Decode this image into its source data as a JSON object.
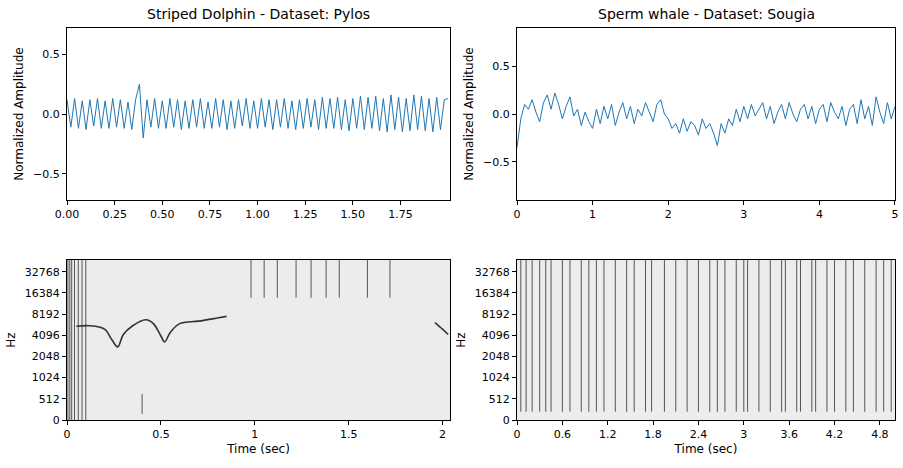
{
  "chart_data": [
    {
      "type": "line",
      "title": "Striped Dolphin - Dataset: Pylos",
      "y_label": "Normalized Amplitude",
      "color": "#1f77b4",
      "grid": false,
      "x": [
        0,
        0.02,
        0.04,
        0.06,
        0.08,
        0.1,
        0.12,
        0.14,
        0.16,
        0.18,
        0.2,
        0.22,
        0.24,
        0.26,
        0.28,
        0.3,
        0.32,
        0.34,
        0.36,
        0.38,
        0.4,
        0.42,
        0.44,
        0.46,
        0.48,
        0.5,
        0.52,
        0.54,
        0.56,
        0.58,
        0.6,
        0.62,
        0.64,
        0.66,
        0.68,
        0.7,
        0.72,
        0.74,
        0.76,
        0.78,
        0.8,
        0.82,
        0.84,
        0.86,
        0.88,
        0.9,
        0.92,
        0.94,
        0.96,
        0.98,
        1.0,
        1.02,
        1.04,
        1.06,
        1.08,
        1.1,
        1.12,
        1.14,
        1.16,
        1.18,
        1.2,
        1.22,
        1.24,
        1.26,
        1.28,
        1.3,
        1.32,
        1.34,
        1.36,
        1.38,
        1.4,
        1.42,
        1.44,
        1.46,
        1.48,
        1.5,
        1.52,
        1.54,
        1.56,
        1.58,
        1.6,
        1.62,
        1.64,
        1.66,
        1.68,
        1.7,
        1.72,
        1.74,
        1.76,
        1.78,
        1.8,
        1.82,
        1.84,
        1.86,
        1.88,
        1.9,
        1.92,
        1.94,
        1.96,
        1.98,
        2.0
      ],
      "values": [
        0.12,
        -0.11,
        0.13,
        -0.12,
        0.11,
        -0.13,
        0.12,
        -0.1,
        0.13,
        -0.12,
        0.11,
        -0.12,
        0.13,
        -0.11,
        0.12,
        -0.12,
        0.1,
        -0.13,
        0.12,
        0.25,
        -0.2,
        0.12,
        -0.11,
        0.13,
        -0.12,
        0.11,
        -0.12,
        0.13,
        -0.11,
        0.12,
        -0.13,
        0.11,
        -0.12,
        0.12,
        -0.11,
        0.13,
        -0.12,
        0.1,
        -0.12,
        0.13,
        -0.11,
        0.12,
        -0.13,
        0.11,
        -0.12,
        0.12,
        -0.1,
        0.13,
        -0.12,
        0.11,
        -0.12,
        0.13,
        -0.11,
        0.12,
        -0.13,
        0.12,
        -0.11,
        0.13,
        -0.12,
        0.11,
        -0.13,
        0.12,
        -0.12,
        0.13,
        -0.11,
        0.12,
        -0.13,
        0.14,
        -0.12,
        0.13,
        -0.12,
        0.14,
        -0.13,
        0.12,
        -0.14,
        0.13,
        -0.12,
        0.15,
        -0.13,
        0.14,
        -0.12,
        0.15,
        -0.14,
        0.13,
        -0.15,
        0.16,
        -0.13,
        0.14,
        -0.15,
        0.13,
        -0.14,
        0.16,
        -0.13,
        0.15,
        -0.14,
        0.13,
        -0.15,
        0.14,
        -0.13,
        0.12,
        0.13
      ],
      "xlim": [
        0,
        2.01
      ],
      "xticks": [
        {
          "value": 0,
          "label": "0.00"
        },
        {
          "value": 0.25,
          "label": "0.25"
        },
        {
          "value": 0.5,
          "label": "0.50"
        },
        {
          "value": 0.75,
          "label": "0.75"
        },
        {
          "value": 1,
          "label": "1.00"
        },
        {
          "value": 1.25,
          "label": "1.25"
        },
        {
          "value": 1.5,
          "label": "1.50"
        },
        {
          "value": 1.75,
          "label": "1.75"
        }
      ],
      "ylim": [
        -0.72,
        0.72
      ],
      "yticks": [
        {
          "value": -0.5,
          "label": "−0.5"
        },
        {
          "value": 0,
          "label": "0.0"
        },
        {
          "value": 0.5,
          "label": "0.5"
        }
      ]
    },
    {
      "type": "line",
      "title": "Sperm whale - Dataset: Sougia",
      "y_label": "Normalized Amplitude",
      "color": "#1f77b4",
      "grid": false,
      "x": [
        0,
        0.05,
        0.1,
        0.15,
        0.2,
        0.25,
        0.3,
        0.35,
        0.4,
        0.45,
        0.5,
        0.55,
        0.6,
        0.65,
        0.7,
        0.75,
        0.8,
        0.85,
        0.9,
        0.95,
        1.0,
        1.05,
        1.1,
        1.15,
        1.2,
        1.25,
        1.3,
        1.35,
        1.4,
        1.45,
        1.5,
        1.55,
        1.6,
        1.65,
        1.7,
        1.75,
        1.8,
        1.85,
        1.9,
        1.95,
        2.0,
        2.05,
        2.1,
        2.15,
        2.2,
        2.25,
        2.3,
        2.35,
        2.4,
        2.45,
        2.5,
        2.55,
        2.6,
        2.65,
        2.7,
        2.75,
        2.8,
        2.85,
        2.9,
        2.95,
        3.0,
        3.05,
        3.1,
        3.15,
        3.2,
        3.25,
        3.3,
        3.35,
        3.4,
        3.45,
        3.5,
        3.55,
        3.6,
        3.65,
        3.7,
        3.75,
        3.8,
        3.85,
        3.9,
        3.95,
        4.0,
        4.05,
        4.1,
        4.15,
        4.2,
        4.25,
        4.3,
        4.35,
        4.4,
        4.45,
        4.5,
        4.55,
        4.6,
        4.65,
        4.7,
        4.75,
        4.8,
        4.85,
        4.9,
        4.95,
        5.0
      ],
      "values": [
        -0.35,
        -0.05,
        0.1,
        0.05,
        0.15,
        0.02,
        -0.08,
        0.12,
        0.2,
        0.05,
        0.22,
        0.1,
        -0.05,
        0.08,
        0.18,
        -0.02,
        0.05,
        -0.12,
        0.02,
        -0.08,
        -0.15,
        0.05,
        -0.1,
        0.08,
        -0.05,
        0.1,
        -0.12,
        0.02,
        0.12,
        -0.05,
        0.08,
        -0.1,
        0.05,
        -0.02,
        0.12,
        0.02,
        -0.08,
        0.1,
        0.15,
        0.0,
        -0.05,
        -0.15,
        -0.1,
        -0.2,
        -0.05,
        -0.18,
        -0.08,
        -0.12,
        -0.22,
        -0.05,
        -0.15,
        -0.1,
        -0.2,
        -0.33,
        -0.1,
        -0.2,
        -0.05,
        -0.12,
        0.05,
        -0.08,
        0.08,
        -0.05,
        0.1,
        -0.02,
        0.05,
        0.12,
        -0.05,
        0.08,
        -0.1,
        0.02,
        0.1,
        -0.05,
        0.12,
        0.0,
        -0.08,
        0.05,
        0.1,
        -0.05,
        0.08,
        -0.1,
        0.05,
        0.1,
        -0.08,
        0.12,
        0.02,
        -0.05,
        0.08,
        -0.12,
        0.05,
        0.1,
        -0.1,
        0.15,
        -0.05,
        0.08,
        -0.12,
        0.18,
        0.02,
        -0.1,
        0.12,
        -0.05,
        0.08
      ],
      "xlim": [
        0,
        5
      ],
      "xticks": [
        0,
        1,
        2,
        3,
        4,
        5
      ],
      "ylim": [
        -0.9,
        0.9
      ],
      "yticks": [
        {
          "value": -0.5,
          "label": "−0.5"
        },
        {
          "value": 0,
          "label": "0.0"
        },
        {
          "value": 0.5,
          "label": "0.5"
        }
      ]
    },
    {
      "type": "spectrogram",
      "x_label": "Time (sec)",
      "y_label": "Hz",
      "log": "y",
      "grid": false,
      "series": [
        {
          "color": "#333333",
          "x": [
            0.05,
            0.12,
            0.2,
            0.24,
            0.27,
            0.3,
            0.35,
            0.42,
            0.46,
            0.5,
            0.52,
            0.55,
            0.6,
            0.7,
            0.8,
            0.85
          ],
          "values": [
            5500,
            5600,
            5000,
            3500,
            2800,
            4200,
            5600,
            6800,
            6000,
            4000,
            3300,
            4500,
            6000,
            6500,
            7200,
            7600
          ]
        },
        {
          "color": "#333333",
          "x": [
            1.96,
            2.0,
            2.03
          ],
          "values": [
            6200,
            5000,
            4200
          ]
        }
      ],
      "clicks": {
        "color": "#555555",
        "x": [
          0.005,
          0.015,
          0.025,
          0.04,
          0.06,
          0.08,
          0.1,
          0.4,
          0.98,
          1.05,
          1.12,
          1.22,
          1.3,
          1.38,
          1.45,
          1.6,
          1.72
        ],
        "low": [
          0,
          0,
          0,
          0,
          0,
          0,
          0,
          150,
          14000,
          14000,
          14000,
          14000,
          14000,
          14000,
          14000,
          14000,
          14000
        ],
        "high": [
          48000,
          48000,
          48000,
          48000,
          48000,
          48000,
          48000,
          600,
          48000,
          48000,
          48000,
          48000,
          48000,
          48000,
          48000,
          48000,
          48000
        ]
      },
      "xlim": [
        0,
        2.04
      ],
      "xticks": [
        0,
        0.5,
        1,
        1.5,
        2
      ],
      "ylim": [
        0,
        48000
      ],
      "yticks": [
        0,
        512,
        1024,
        2048,
        4096,
        8192,
        16384,
        32768
      ]
    },
    {
      "type": "spectrogram",
      "x_label": "Time (sec)",
      "y_label": "Hz",
      "log": "y",
      "grid": false,
      "series": [],
      "clicks": {
        "color": "#555555",
        "x": [
          0.05,
          0.12,
          0.2,
          0.3,
          0.38,
          0.45,
          0.6,
          0.7,
          0.85,
          0.95,
          1.05,
          1.15,
          1.3,
          1.45,
          1.55,
          1.7,
          1.78,
          1.95,
          2.1,
          2.25,
          2.4,
          2.55,
          2.65,
          2.75,
          2.9,
          3.0,
          3.05,
          3.2,
          3.35,
          3.5,
          3.55,
          3.7,
          3.75,
          3.9,
          3.95,
          4.1,
          4.2,
          4.35,
          4.45,
          4.6,
          4.75,
          4.85,
          4.95
        ],
        "low": [
          200,
          200,
          200,
          200,
          200,
          200,
          200,
          200,
          200,
          200,
          200,
          200,
          200,
          200,
          200,
          200,
          200,
          200,
          200,
          200,
          200,
          200,
          200,
          200,
          200,
          200,
          200,
          200,
          200,
          200,
          200,
          200,
          200,
          200,
          200,
          200,
          200,
          200,
          200,
          200,
          200,
          200,
          200
        ],
        "high": [
          48000,
          48000,
          48000,
          48000,
          48000,
          48000,
          48000,
          48000,
          48000,
          48000,
          48000,
          48000,
          48000,
          48000,
          48000,
          48000,
          48000,
          48000,
          48000,
          48000,
          48000,
          48000,
          48000,
          48000,
          48000,
          48000,
          48000,
          48000,
          48000,
          48000,
          48000,
          48000,
          48000,
          48000,
          48000,
          48000,
          48000,
          48000,
          48000,
          48000,
          48000,
          48000,
          48000
        ]
      },
      "xlim": [
        0,
        5
      ],
      "xticks": [
        0,
        0.6,
        1.2,
        1.8,
        2.4,
        3,
        3.6,
        4.2,
        4.8
      ],
      "ylim": [
        0,
        48000
      ],
      "yticks": [
        0,
        512,
        1024,
        2048,
        4096,
        8192,
        16384,
        32768
      ]
    }
  ]
}
